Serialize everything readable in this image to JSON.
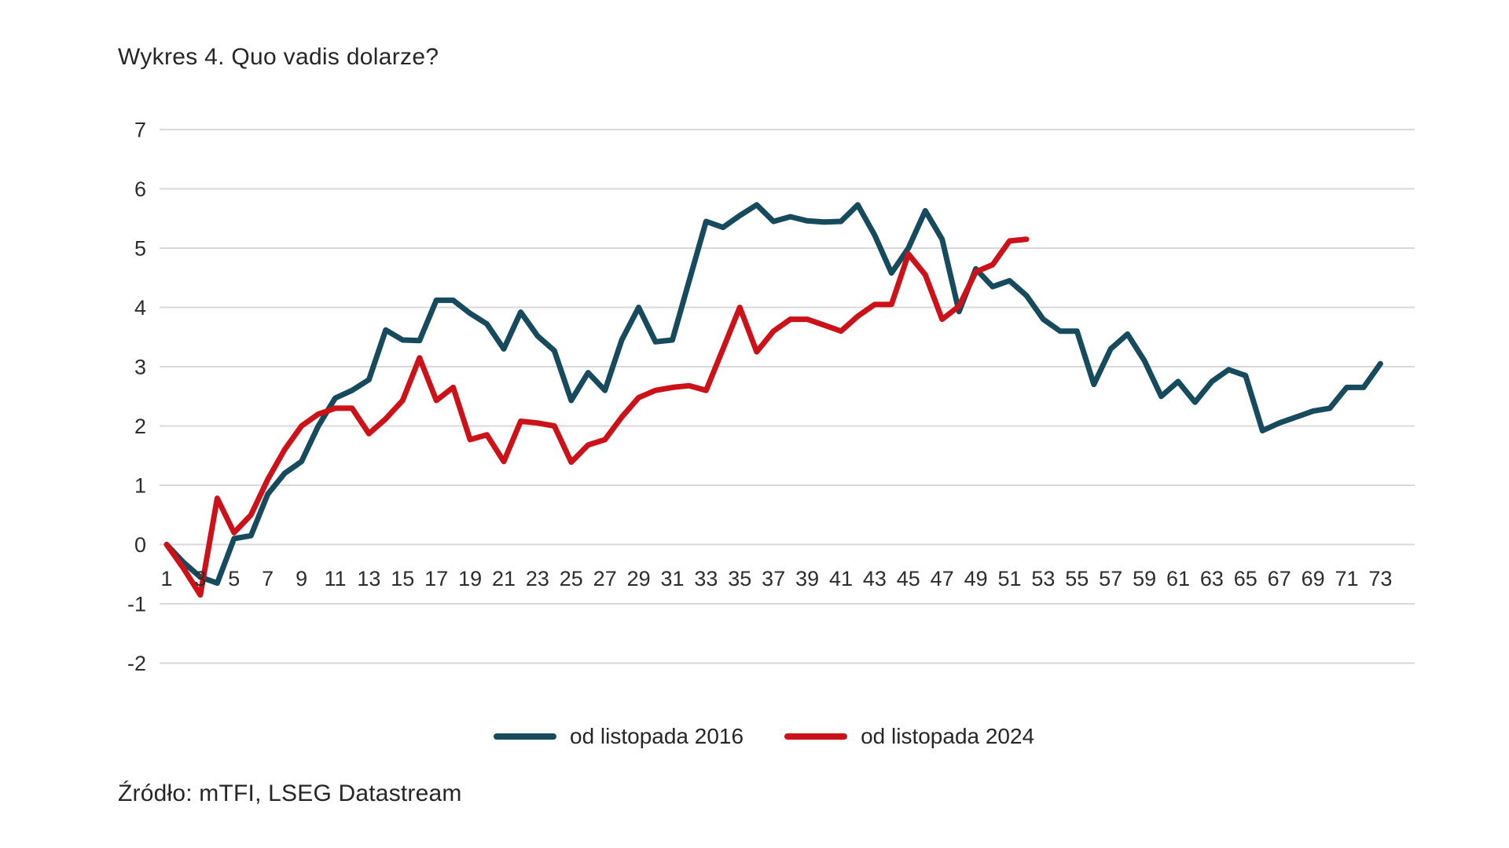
{
  "page": {
    "title": "Wykres 4. Quo vadis dolarze?",
    "source": "Źródło: mTFI, LSEG Datastream"
  },
  "colors": {
    "series_2016": "#164a5d",
    "series_2024": "#cd1118",
    "grid": "#d9d9d9",
    "axis_text": "#2d2d2d",
    "title_text": "#262626"
  },
  "chart_data": {
    "type": "line",
    "title": "Wykres 4. Quo vadis dolarze?",
    "xlabel": "",
    "ylabel": "",
    "x_range": [
      1,
      73
    ],
    "ylim": [
      -2,
      7
    ],
    "yticks": [
      7,
      6,
      5,
      4,
      3,
      2,
      1,
      0,
      -1,
      -2
    ],
    "xticks": [
      1,
      3,
      5,
      7,
      9,
      11,
      13,
      15,
      17,
      19,
      21,
      23,
      25,
      27,
      29,
      31,
      33,
      35,
      37,
      39,
      41,
      43,
      45,
      47,
      49,
      51,
      53,
      55,
      57,
      59,
      61,
      63,
      65,
      67,
      69,
      71,
      73
    ],
    "grid": true,
    "legend_position": "bottom",
    "series": [
      {
        "name": "od listopada 2016",
        "color": "#164a5d",
        "x_start": 1,
        "values": [
          0,
          -0.3,
          -0.55,
          -0.65,
          0.1,
          0.15,
          0.85,
          1.2,
          1.4,
          2.0,
          2.47,
          2.6,
          2.78,
          3.62,
          3.45,
          3.44,
          4.12,
          4.12,
          3.9,
          3.72,
          3.3,
          3.92,
          3.52,
          3.27,
          2.43,
          2.9,
          2.6,
          3.45,
          4.0,
          3.42,
          3.45,
          4.45,
          5.45,
          5.35,
          5.55,
          5.73,
          5.45,
          5.53,
          5.46,
          5.44,
          5.45,
          5.73,
          5.22,
          4.58,
          5.0,
          5.63,
          5.15,
          3.93,
          4.65,
          4.35,
          4.45,
          4.2,
          3.8,
          3.6,
          3.6,
          2.7,
          3.3,
          3.55,
          3.1,
          2.5,
          2.75,
          2.4,
          2.75,
          2.95,
          2.85,
          1.92,
          2.05,
          2.15,
          2.25,
          2.3,
          2.65,
          2.65,
          3.05
        ]
      },
      {
        "name": "od listopada 2024",
        "color": "#cd1118",
        "x_start": 1,
        "values": [
          0,
          -0.4,
          -0.85,
          0.78,
          0.2,
          0.5,
          1.1,
          1.6,
          2.0,
          2.2,
          2.3,
          2.3,
          1.87,
          2.12,
          2.43,
          3.15,
          2.43,
          2.65,
          1.77,
          1.85,
          1.4,
          2.08,
          2.05,
          2.0,
          1.39,
          1.68,
          1.77,
          2.15,
          2.48,
          2.6,
          2.65,
          2.68,
          2.6,
          3.3,
          4.0,
          3.25,
          3.6,
          3.8,
          3.8,
          3.7,
          3.6,
          3.85,
          4.05,
          4.05,
          4.9,
          4.55,
          3.8,
          4.02,
          4.6,
          4.72,
          5.12,
          5.15
        ]
      }
    ]
  }
}
